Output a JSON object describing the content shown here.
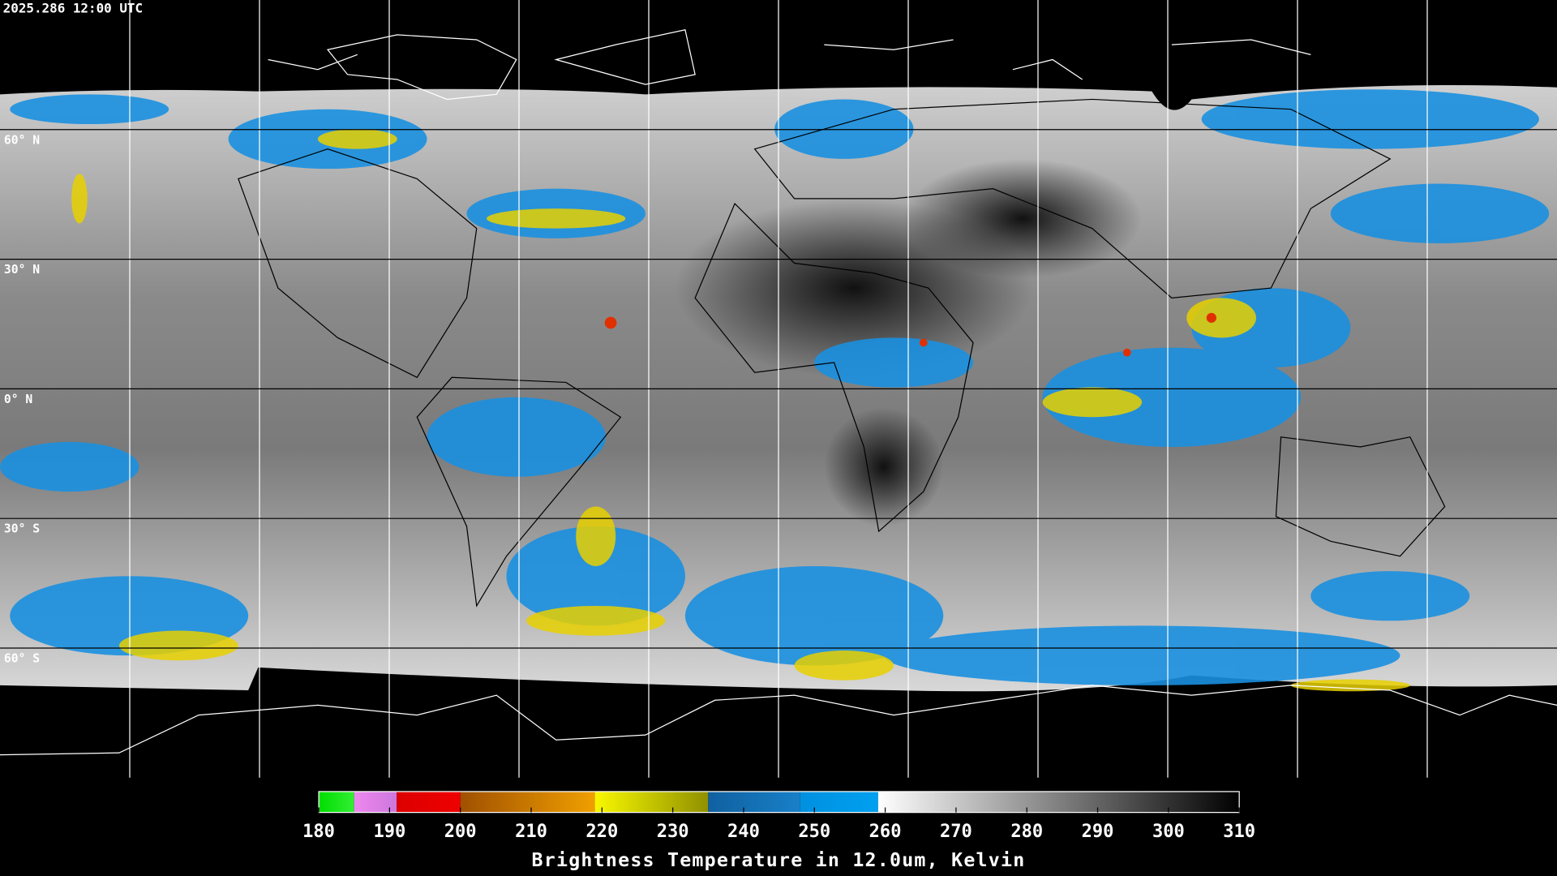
{
  "timestamp": "2025.286 12:00 UTC",
  "map": {
    "lonlim": [
      -180,
      180
    ],
    "latlim": [
      -90,
      90
    ],
    "lon_lines": [
      -150,
      -120,
      -90,
      -60,
      -30,
      0,
      30,
      60,
      90,
      120,
      150
    ],
    "lat_lines": [
      {
        "value": 60,
        "label": "60° N"
      },
      {
        "value": 30,
        "label": "30° N"
      },
      {
        "value": 0,
        "label": "0° N"
      },
      {
        "value": -30,
        "label": "30° S"
      },
      {
        "value": -60,
        "label": "60° S"
      }
    ]
  },
  "colorbar": {
    "range": [
      180,
      310
    ],
    "ticks": [
      180,
      190,
      200,
      210,
      220,
      230,
      240,
      250,
      260,
      270,
      280,
      290,
      300,
      310
    ],
    "colormap": [
      [
        180,
        185,
        "#00dd00",
        "#33ee33"
      ],
      [
        185,
        191,
        "#ee88ee",
        "#cc77dd"
      ],
      [
        191,
        200,
        "#dd0000",
        "#ee0000"
      ],
      [
        200,
        219,
        "#a05000",
        "#f0a000"
      ],
      [
        219,
        235,
        "#f8f800",
        "#909000"
      ],
      [
        235,
        248,
        "#1060a0",
        "#1880c8"
      ],
      [
        248,
        259,
        "#0090e0",
        "#00a0f0"
      ],
      [
        259,
        310,
        "#ffffff",
        "#000000"
      ]
    ],
    "label": "Brightness Temperature in 12.0um, Kelvin"
  }
}
